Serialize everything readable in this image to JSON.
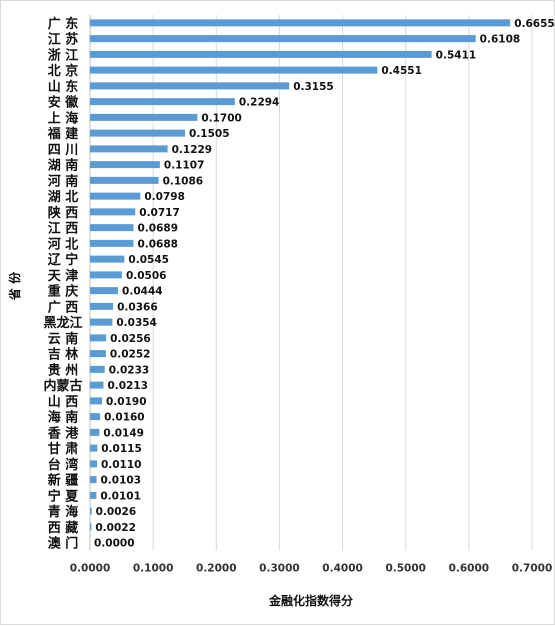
{
  "chart_data": {
    "type": "bar",
    "orientation": "horizontal",
    "categories": [
      "广 东",
      "江 苏",
      "浙 江",
      "北 京",
      "山 东",
      "安 徽",
      "上 海",
      "福 建",
      "四 川",
      "湖 南",
      "河 南",
      "湖 北",
      "陕 西",
      "江 西",
      "河 北",
      "辽 宁",
      "天 津",
      "重 庆",
      "广 西",
      "黑龙江",
      "云 南",
      "吉 林",
      "贵 州",
      "内蒙古",
      "山 西",
      "海 南",
      "香 港",
      "甘 肃",
      "台 湾",
      "新 疆",
      "宁 夏",
      "青 海",
      "西 藏",
      "澳 门"
    ],
    "values": [
      0.6655,
      0.6108,
      0.5411,
      0.4551,
      0.3155,
      0.2294,
      0.17,
      0.1505,
      0.1229,
      0.1107,
      0.1086,
      0.0798,
      0.0717,
      0.0689,
      0.0688,
      0.0545,
      0.0506,
      0.0444,
      0.0366,
      0.0354,
      0.0256,
      0.0252,
      0.0233,
      0.0213,
      0.019,
      0.016,
      0.0149,
      0.0115,
      0.011,
      0.0103,
      0.0101,
      0.0026,
      0.0022,
      0.0
    ],
    "value_labels": [
      "0.6655",
      "0.6108",
      "0.5411",
      "0.4551",
      "0.3155",
      "0.2294",
      "0.1700",
      "0.1505",
      "0.1229",
      "0.1107",
      "0.1086",
      "0.0798",
      "0.0717",
      "0.0689",
      "0.0688",
      "0.0545",
      "0.0506",
      "0.0444",
      "0.0366",
      "0.0354",
      "0.0256",
      "0.0252",
      "0.0233",
      "0.0213",
      "0.0190",
      "0.0160",
      "0.0149",
      "0.0115",
      "0.0110",
      "0.0103",
      "0.0101",
      "0.0026",
      "0.0022",
      "0.0000"
    ],
    "xlabel": "金融化指数得分",
    "ylabel": "省 份",
    "xlim": [
      0,
      0.7
    ],
    "xticks": [
      "0.0000",
      "0.1000",
      "0.2000",
      "0.3000",
      "0.4000",
      "0.5000",
      "0.6000",
      "0.7000"
    ],
    "bar_color": "#5b9bd5",
    "grid": true
  }
}
